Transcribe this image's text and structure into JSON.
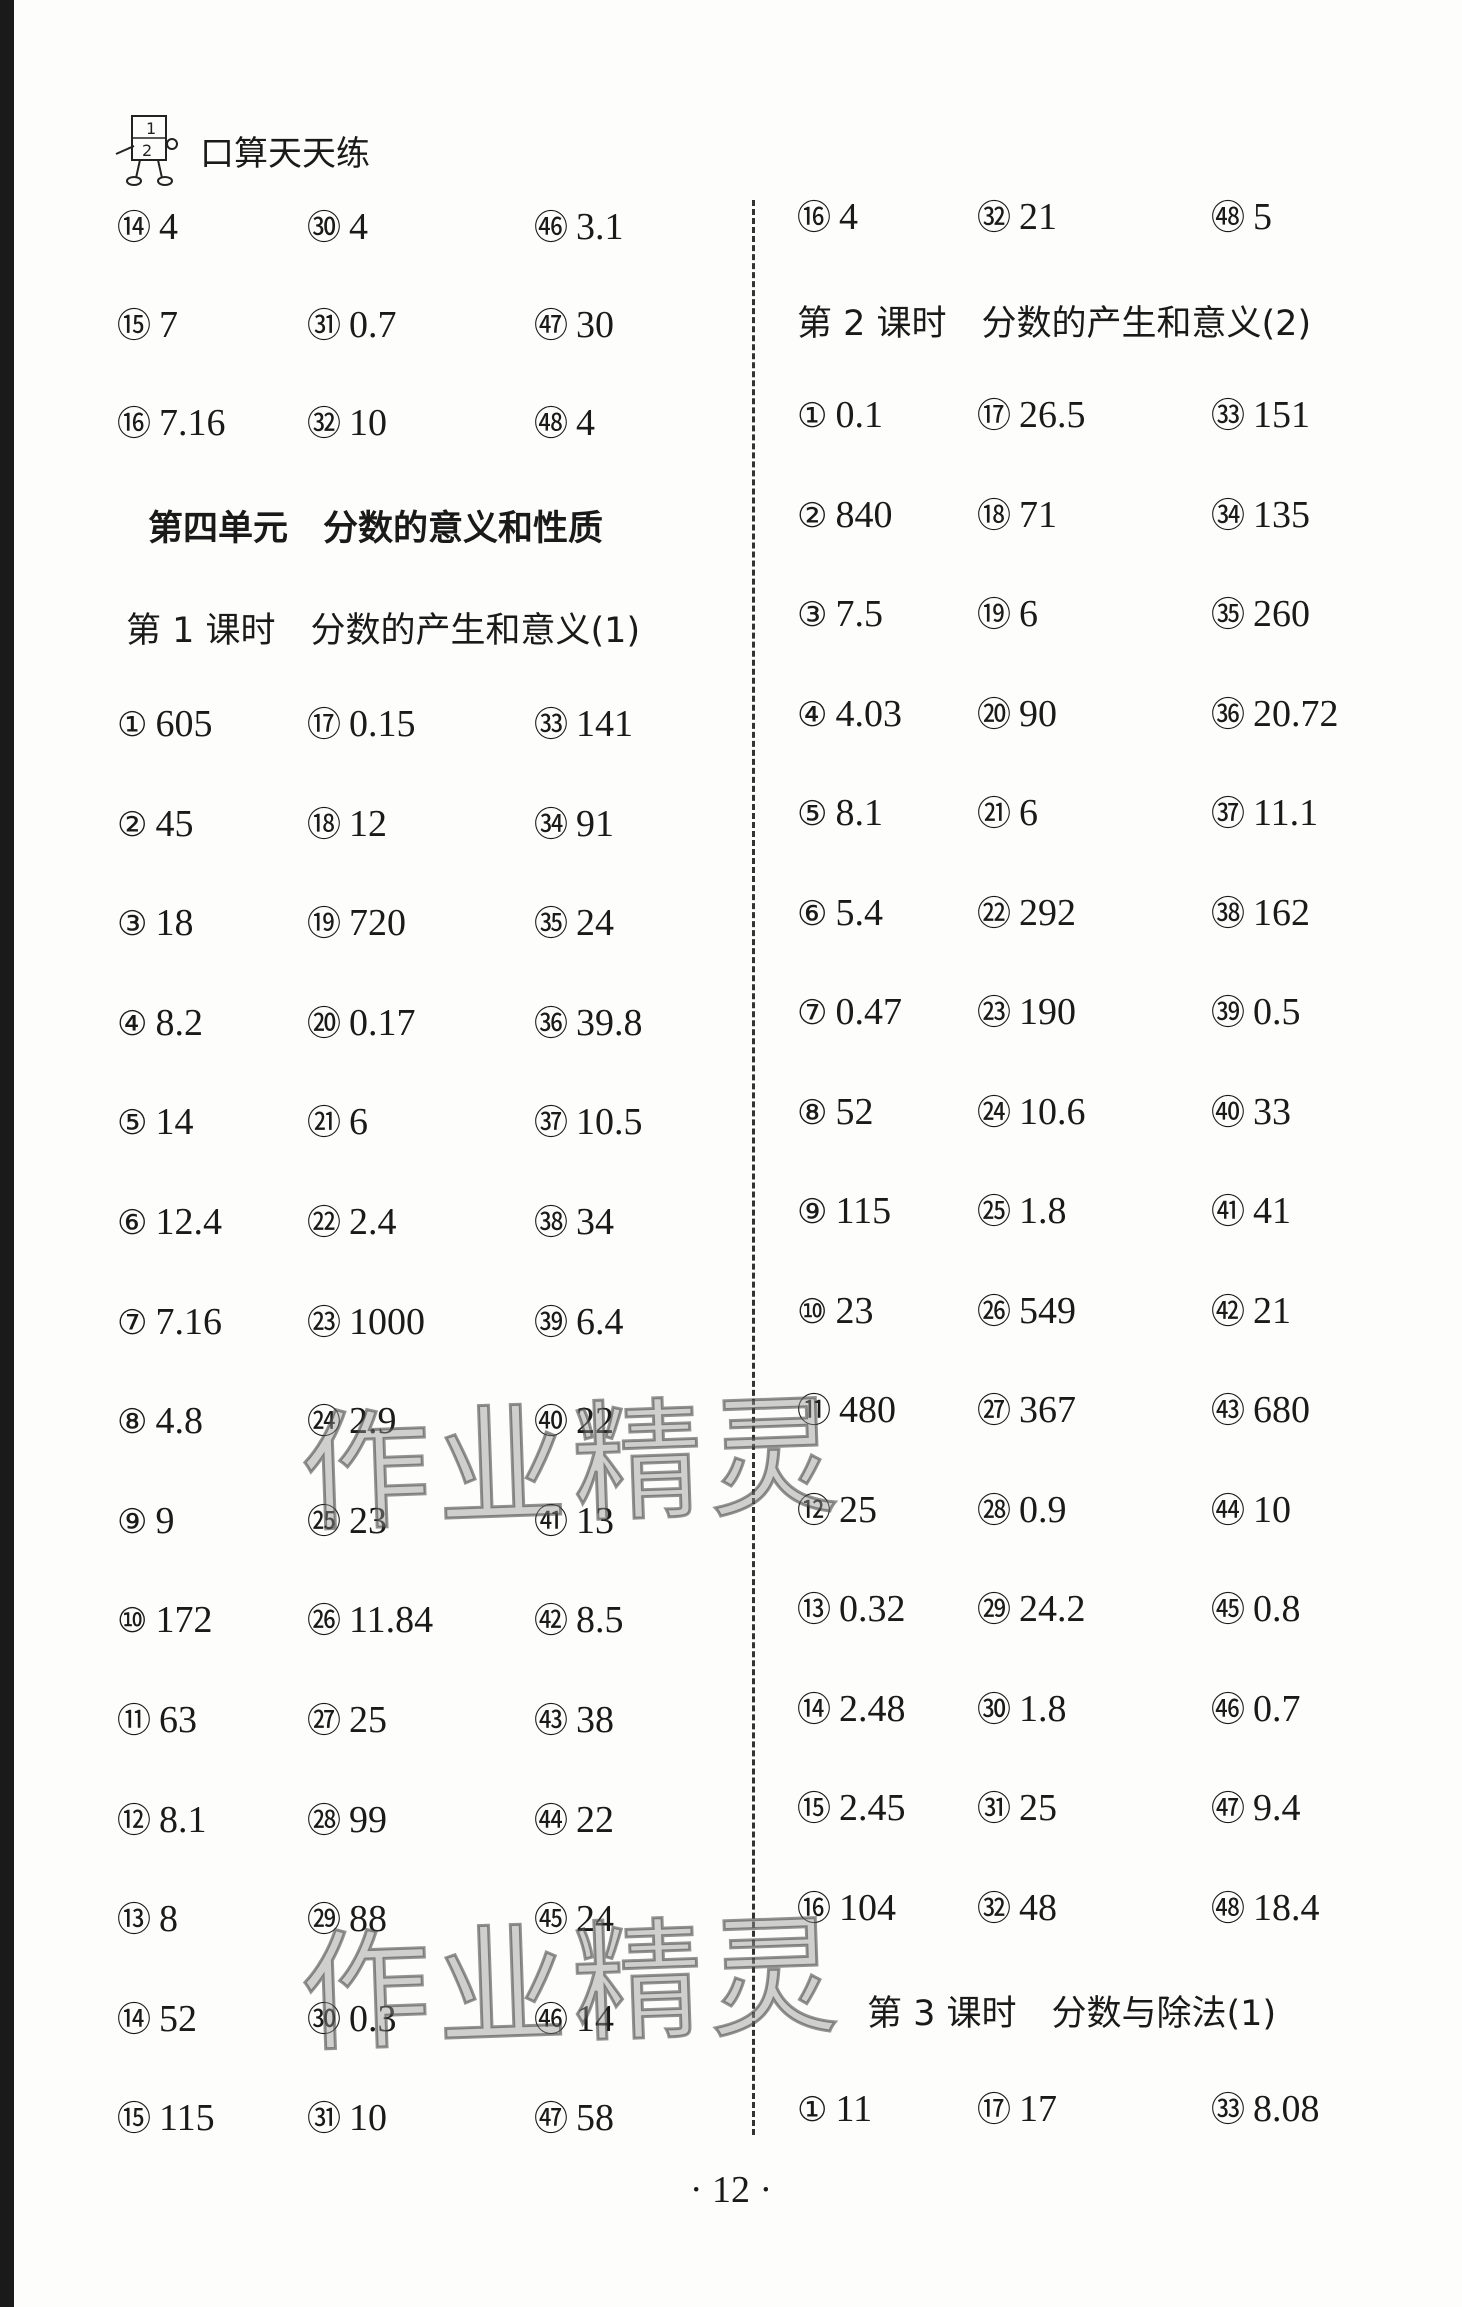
{
  "header": {
    "title": "口算天天练",
    "logo_text": "1 2"
  },
  "left": {
    "top_rows": [
      [
        {
          "n": "⑭",
          "v": "4"
        },
        {
          "n": "㉚",
          "v": "4"
        },
        {
          "n": "㊻",
          "v": "3.1"
        }
      ],
      [
        {
          "n": "⑮",
          "v": "7"
        },
        {
          "n": "㉛",
          "v": "0.7"
        },
        {
          "n": "㊼",
          "v": "30"
        }
      ],
      [
        {
          "n": "⑯",
          "v": "7.16"
        },
        {
          "n": "㉜",
          "v": "10"
        },
        {
          "n": "㊽",
          "v": "4"
        }
      ]
    ],
    "unit_heading": "第四单元　分数的意义和性质",
    "lesson_heading": "第 1 课时　分数的产生和意义(1)",
    "rows": [
      [
        {
          "n": "①",
          "v": "605"
        },
        {
          "n": "⑰",
          "v": "0.15"
        },
        {
          "n": "㉝",
          "v": "141"
        }
      ],
      [
        {
          "n": "②",
          "v": "45"
        },
        {
          "n": "⑱",
          "v": "12"
        },
        {
          "n": "㉞",
          "v": "91"
        }
      ],
      [
        {
          "n": "③",
          "v": "18"
        },
        {
          "n": "⑲",
          "v": "720"
        },
        {
          "n": "㉟",
          "v": "24"
        }
      ],
      [
        {
          "n": "④",
          "v": "8.2"
        },
        {
          "n": "⑳",
          "v": "0.17"
        },
        {
          "n": "㊱",
          "v": "39.8"
        }
      ],
      [
        {
          "n": "⑤",
          "v": "14"
        },
        {
          "n": "㉑",
          "v": "6"
        },
        {
          "n": "㊲",
          "v": "10.5"
        }
      ],
      [
        {
          "n": "⑥",
          "v": "12.4"
        },
        {
          "n": "㉒",
          "v": "2.4"
        },
        {
          "n": "㊳",
          "v": "34"
        }
      ],
      [
        {
          "n": "⑦",
          "v": "7.16"
        },
        {
          "n": "㉓",
          "v": "1000"
        },
        {
          "n": "㊴",
          "v": "6.4"
        }
      ],
      [
        {
          "n": "⑧",
          "v": "4.8"
        },
        {
          "n": "㉔",
          "v": "2.9"
        },
        {
          "n": "㊵",
          "v": "22"
        }
      ],
      [
        {
          "n": "⑨",
          "v": "9"
        },
        {
          "n": "㉕",
          "v": "23"
        },
        {
          "n": "㊶",
          "v": "13"
        }
      ],
      [
        {
          "n": "⑩",
          "v": "172"
        },
        {
          "n": "㉖",
          "v": "11.84"
        },
        {
          "n": "㊷",
          "v": "8.5"
        }
      ],
      [
        {
          "n": "⑪",
          "v": "63"
        },
        {
          "n": "㉗",
          "v": "25"
        },
        {
          "n": "㊸",
          "v": "38"
        }
      ],
      [
        {
          "n": "⑫",
          "v": "8.1"
        },
        {
          "n": "㉘",
          "v": "99"
        },
        {
          "n": "㊹",
          "v": "22"
        }
      ],
      [
        {
          "n": "⑬",
          "v": "8"
        },
        {
          "n": "㉙",
          "v": "88"
        },
        {
          "n": "㊺",
          "v": "24"
        }
      ],
      [
        {
          "n": "⑭",
          "v": "52"
        },
        {
          "n": "㉚",
          "v": "0.3"
        },
        {
          "n": "㊻",
          "v": "14"
        }
      ],
      [
        {
          "n": "⑮",
          "v": "115"
        },
        {
          "n": "㉛",
          "v": "10"
        },
        {
          "n": "㊼",
          "v": "58"
        }
      ]
    ]
  },
  "right": {
    "top_rows": [
      [
        {
          "n": "⑯",
          "v": "4"
        },
        {
          "n": "㉜",
          "v": "21"
        },
        {
          "n": "㊽",
          "v": "5"
        }
      ]
    ],
    "lesson2_heading": "第 2 课时　分数的产生和意义(2)",
    "rows": [
      [
        {
          "n": "①",
          "v": "0.1"
        },
        {
          "n": "⑰",
          "v": "26.5"
        },
        {
          "n": "㉝",
          "v": "151"
        }
      ],
      [
        {
          "n": "②",
          "v": "840"
        },
        {
          "n": "⑱",
          "v": "71"
        },
        {
          "n": "㉞",
          "v": "135"
        }
      ],
      [
        {
          "n": "③",
          "v": "7.5"
        },
        {
          "n": "⑲",
          "v": "6"
        },
        {
          "n": "㉟",
          "v": "260"
        }
      ],
      [
        {
          "n": "④",
          "v": "4.03"
        },
        {
          "n": "⑳",
          "v": "90"
        },
        {
          "n": "㊱",
          "v": "20.72"
        }
      ],
      [
        {
          "n": "⑤",
          "v": "8.1"
        },
        {
          "n": "㉑",
          "v": "6"
        },
        {
          "n": "㊲",
          "v": "11.1"
        }
      ],
      [
        {
          "n": "⑥",
          "v": "5.4"
        },
        {
          "n": "㉒",
          "v": "292"
        },
        {
          "n": "㊳",
          "v": "162"
        }
      ],
      [
        {
          "n": "⑦",
          "v": "0.47"
        },
        {
          "n": "㉓",
          "v": "190"
        },
        {
          "n": "㊴",
          "v": "0.5"
        }
      ],
      [
        {
          "n": "⑧",
          "v": "52"
        },
        {
          "n": "㉔",
          "v": "10.6"
        },
        {
          "n": "㊵",
          "v": "33"
        }
      ],
      [
        {
          "n": "⑨",
          "v": "115"
        },
        {
          "n": "㉕",
          "v": "1.8"
        },
        {
          "n": "㊶",
          "v": "41"
        }
      ],
      [
        {
          "n": "⑩",
          "v": "23"
        },
        {
          "n": "㉖",
          "v": "549"
        },
        {
          "n": "㊷",
          "v": "21"
        }
      ],
      [
        {
          "n": "⑪",
          "v": "480"
        },
        {
          "n": "㉗",
          "v": "367"
        },
        {
          "n": "㊸",
          "v": "680"
        }
      ],
      [
        {
          "n": "⑫",
          "v": "25"
        },
        {
          "n": "㉘",
          "v": "0.9"
        },
        {
          "n": "㊹",
          "v": "10"
        }
      ],
      [
        {
          "n": "⑬",
          "v": "0.32"
        },
        {
          "n": "㉙",
          "v": "24.2"
        },
        {
          "n": "㊺",
          "v": "0.8"
        }
      ],
      [
        {
          "n": "⑭",
          "v": "2.48"
        },
        {
          "n": "㉚",
          "v": "1.8"
        },
        {
          "n": "㊻",
          "v": "0.7"
        }
      ],
      [
        {
          "n": "⑮",
          "v": "2.45"
        },
        {
          "n": "㉛",
          "v": "25"
        },
        {
          "n": "㊼",
          "v": "9.4"
        }
      ],
      [
        {
          "n": "⑯",
          "v": "104"
        },
        {
          "n": "㉜",
          "v": "48"
        },
        {
          "n": "㊽",
          "v": "18.4"
        }
      ]
    ],
    "lesson3_heading": "第 3 课时　分数与除法(1)",
    "bottom_rows": [
      [
        {
          "n": "①",
          "v": "11"
        },
        {
          "n": "⑰",
          "v": "17"
        },
        {
          "n": "㉝",
          "v": "8.08"
        }
      ]
    ]
  },
  "watermark": "作业精灵",
  "page_number": "· 12 ·"
}
